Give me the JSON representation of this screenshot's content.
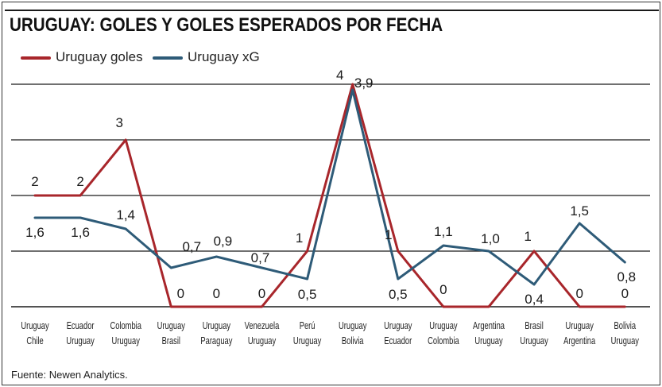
{
  "title": "URUGUAY: GOLES Y GOLES ESPERADOS POR FECHA",
  "source": "Fuente: Newen Analytics.",
  "colors": {
    "goles": "#a8262b",
    "xg": "#2e5b78",
    "grid": "#1a1a1a",
    "text": "#222222"
  },
  "chart_data": {
    "type": "line",
    "title": "URUGUAY: GOLES Y GOLES ESPERADOS POR FECHA",
    "categories": [
      [
        "Uruguay",
        "Chile"
      ],
      [
        "Ecuador",
        "Uruguay"
      ],
      [
        "Colombia",
        "Uruguay"
      ],
      [
        "Uruguay",
        "Brasil"
      ],
      [
        "Uruguay",
        "Paraguay"
      ],
      [
        "Venezuela",
        "Uruguay"
      ],
      [
        "Perú",
        "Uruguay"
      ],
      [
        "Uruguay",
        "Bolivia"
      ],
      [
        "Uruguay",
        "Ecuador"
      ],
      [
        "Uruguay",
        "Colombia"
      ],
      [
        "Argentina",
        "Uruguay"
      ],
      [
        "Brasil",
        "Uruguay"
      ],
      [
        "Uruguay",
        "Argentina"
      ],
      [
        "Bolivia",
        "Uruguay"
      ]
    ],
    "series": [
      {
        "name": "Uruguay goles",
        "values": [
          2,
          2,
          3,
          0,
          0,
          0,
          1,
          4,
          1,
          0,
          0,
          1,
          0,
          0
        ],
        "labels": [
          "2",
          "2",
          "3",
          "0",
          "0",
          "0",
          "1",
          "4",
          "1",
          "0",
          "",
          "1",
          "0",
          "0"
        ]
      },
      {
        "name": "Uruguay xG",
        "values": [
          1.6,
          1.6,
          1.4,
          0.7,
          0.9,
          0.7,
          0.5,
          3.9,
          0.5,
          1.1,
          1.0,
          0.4,
          1.5,
          0.8
        ],
        "labels": [
          "1,6",
          "1,6",
          "1,4",
          "0,7",
          "0,9",
          "0,7",
          "0,5",
          "3,9",
          "0,5",
          "1,1",
          "1,0",
          "0,4",
          "1,5",
          "0,8"
        ]
      }
    ],
    "ylim": [
      0,
      4
    ],
    "y_gridlines": [
      0,
      1,
      2,
      3,
      4
    ],
    "grid": true,
    "legend": "top-left"
  }
}
